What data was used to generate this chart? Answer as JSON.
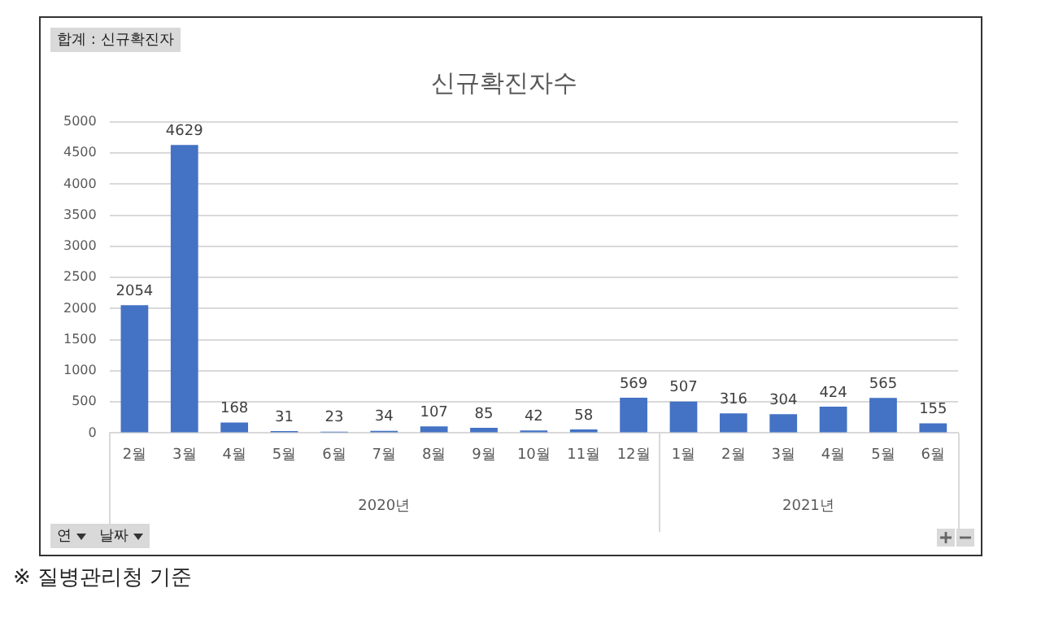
{
  "chart_data": {
    "type": "bar",
    "title": "신규확진자수",
    "categories": [
      "2월",
      "3월",
      "4월",
      "5월",
      "6월",
      "7월",
      "8월",
      "9월",
      "10월",
      "11월",
      "12월",
      "1월",
      "2월",
      "3월",
      "4월",
      "5월",
      "6월"
    ],
    "values": [
      2054,
      4629,
      168,
      31,
      23,
      34,
      107,
      85,
      42,
      58,
      569,
      507,
      316,
      304,
      424,
      565,
      155
    ],
    "color": "#4472c4",
    "ylim": [
      0,
      5000
    ],
    "yticks": [
      0,
      500,
      1000,
      1500,
      2000,
      2500,
      3000,
      3500,
      4000,
      4500,
      5000
    ],
    "grid": "y",
    "legend": false,
    "data_labels": true,
    "annotations": [
      "합계 : 신규확진자",
      "2020년",
      "2021년",
      "연",
      "날짜",
      "※ 질병관리청 기준"
    ]
  }
}
